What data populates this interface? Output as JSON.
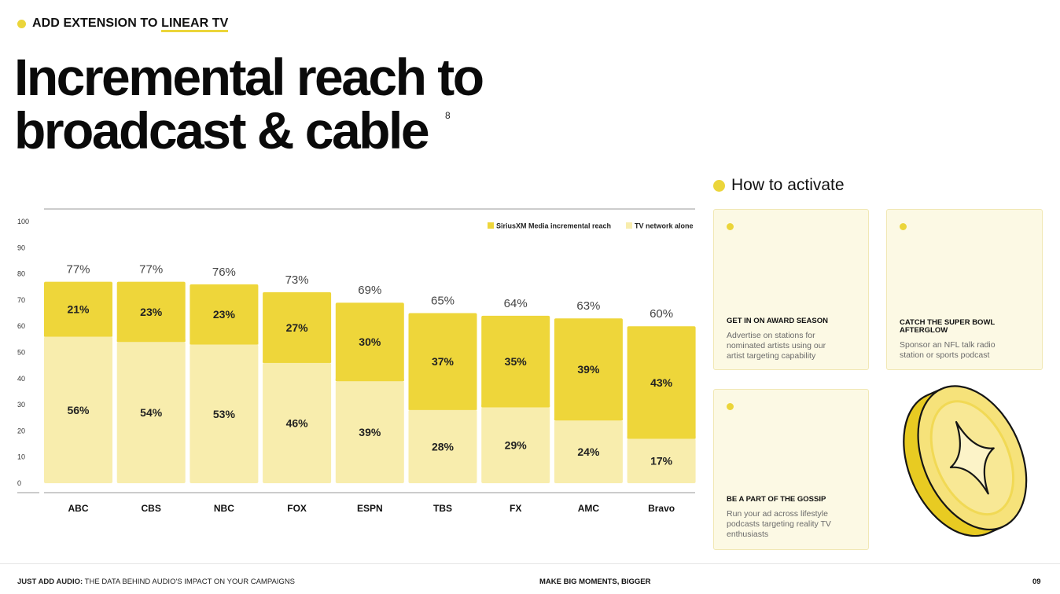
{
  "header": {
    "kicker_prefix": "ADD EXTENSION TO ",
    "kicker_highlight": "LINEAR TV",
    "title_line1": "Incremental reach to",
    "title_line2": "broadcast & cable",
    "footnote_ref": "8"
  },
  "chart_data": {
    "type": "bar",
    "stacked": true,
    "categories": [
      "ABC",
      "CBS",
      "NBC",
      "FOX",
      "ESPN",
      "TBS",
      "FX",
      "AMC",
      "Bravo"
    ],
    "series": [
      {
        "name": "TV network alone",
        "values": [
          56,
          54,
          53,
          46,
          39,
          28,
          29,
          24,
          17
        ],
        "labels": [
          "56%",
          "54%",
          "53%",
          "46%",
          "39%",
          "28%",
          "29%",
          "24%",
          "17%"
        ],
        "color": "#F8EDAD"
      },
      {
        "name": "SiriusXM Media incremental reach",
        "values": [
          21,
          23,
          23,
          27,
          30,
          37,
          35,
          39,
          43
        ],
        "labels": [
          "21%",
          "23%",
          "23%",
          "27%",
          "30%",
          "37%",
          "35%",
          "39%",
          "43%"
        ],
        "color": "#EED63A"
      }
    ],
    "totals": [
      77,
      77,
      76,
      73,
      69,
      65,
      64,
      63,
      60
    ],
    "total_labels": [
      "77%",
      "77%",
      "76%",
      "73%",
      "69%",
      "65%",
      "64%",
      "63%",
      "60%"
    ],
    "y_ticks": [
      "0",
      "10",
      "20",
      "30",
      "40",
      "50",
      "60",
      "70",
      "80",
      "90",
      "100"
    ],
    "ylim": [
      0,
      100
    ],
    "legend_order": [
      "SiriusXM Media incremental reach",
      "TV network alone"
    ],
    "legend_position": "top-right",
    "grid": false
  },
  "activate": {
    "title": "How to activate",
    "cards": [
      {
        "title": "GET IN ON AWARD SEASON",
        "body": [
          "Advertise on stations for",
          "nominated artists using our",
          "artist targeting capability"
        ]
      },
      {
        "title": [
          "CATCH THE SUPER BOWL",
          "AFTERGLOW"
        ],
        "body": [
          "Sponsor an NFL talk radio",
          "station or sports podcast"
        ]
      },
      {
        "title": "BE A PART OF THE GOSSIP",
        "body": [
          "Run your ad across lifestyle",
          "podcasts targeting reality TV",
          "enthusiasts"
        ]
      }
    ]
  },
  "footer": {
    "left_bold": "JUST ADD AUDIO:",
    "left_rest": " THE DATA BEHIND AUDIO'S IMPACT ON YOUR CAMPAIGNS",
    "middle": "MAKE BIG MOMENTS, BIGGER",
    "page": "09"
  },
  "colors": {
    "accent": "#EBD53A",
    "bar_dark": "#EED63A",
    "bar_light": "#F8EDAD",
    "card_bg": "#FCF9E4"
  }
}
